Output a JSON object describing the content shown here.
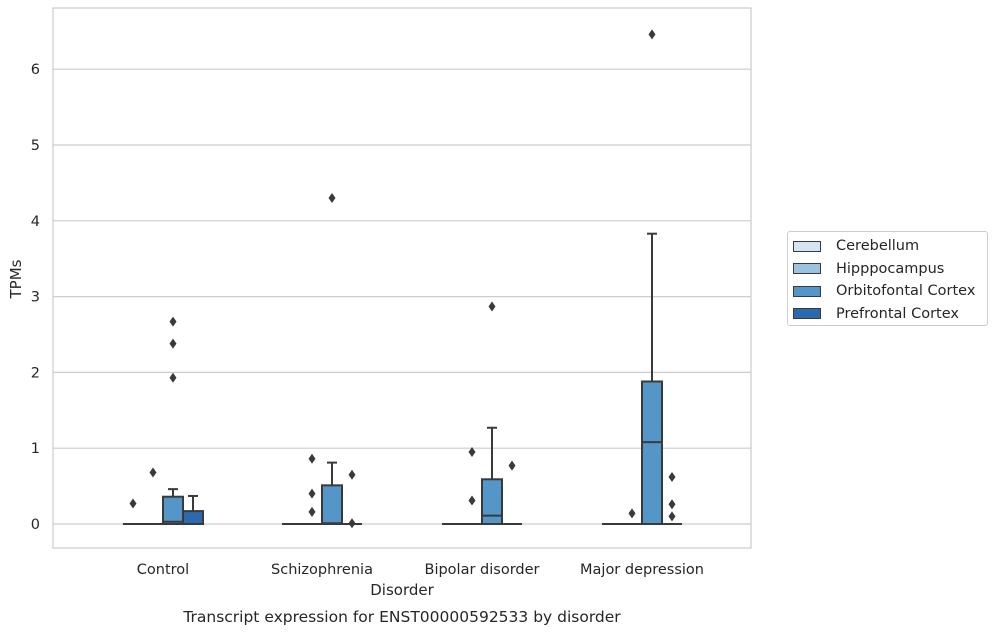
{
  "chart_data": {
    "type": "box",
    "title": "Transcript expression for ENST00000592533 by disorder",
    "xlabel": "Disorder",
    "ylabel": "TPMs",
    "ylim": [
      -0.32,
      6.8
    ],
    "yticks": [
      0,
      1,
      2,
      3,
      4,
      5,
      6
    ],
    "grid": "horizontal",
    "legend_position": "right",
    "categories": [
      "Control",
      "Schizophrenia",
      "Bipolar disorder",
      "Major depression"
    ],
    "series": [
      {
        "name": "Cerebellum",
        "color": "#d3e4f3",
        "boxes": [
          {
            "q1": 0,
            "median": 0,
            "q3": 0,
            "whisker_low": 0,
            "whisker_high": 0,
            "outliers": [
              0.27
            ]
          },
          {
            "q1": 0,
            "median": 0,
            "q3": 0,
            "whisker_low": 0,
            "whisker_high": 0,
            "outliers": []
          },
          {
            "q1": 0,
            "median": 0,
            "q3": 0,
            "whisker_low": 0,
            "whisker_high": 0,
            "outliers": []
          },
          {
            "q1": 0,
            "median": 0,
            "q3": 0,
            "whisker_low": 0,
            "whisker_high": 0,
            "outliers": []
          }
        ]
      },
      {
        "name": "Hipppocampus",
        "color": "#9ac3df",
        "boxes": [
          {
            "q1": 0,
            "median": 0,
            "q3": 0,
            "whisker_low": 0,
            "whisker_high": 0,
            "outliers": [
              0.68
            ]
          },
          {
            "q1": 0,
            "median": 0,
            "q3": 0,
            "whisker_low": 0,
            "whisker_high": 0,
            "outliers": [
              0.16,
              0.4,
              0.86
            ]
          },
          {
            "q1": 0,
            "median": 0,
            "q3": 0,
            "whisker_low": 0,
            "whisker_high": 0,
            "outliers": [
              0.31,
              0.95
            ]
          },
          {
            "q1": 0,
            "median": 0,
            "q3": 0,
            "whisker_low": 0,
            "whisker_high": 0,
            "outliers": [
              0.14
            ]
          }
        ]
      },
      {
        "name": "Orbitofontal Cortex",
        "color": "#5496c7",
        "boxes": [
          {
            "q1": 0,
            "median": 0.03,
            "q3": 0.36,
            "whisker_low": 0,
            "whisker_high": 0.46,
            "outliers": [
              1.93,
              2.38,
              2.67
            ]
          },
          {
            "q1": 0,
            "median": 0.01,
            "q3": 0.51,
            "whisker_low": 0,
            "whisker_high": 0.81,
            "outliers": [
              4.3
            ]
          },
          {
            "q1": 0,
            "median": 0.11,
            "q3": 0.59,
            "whisker_low": 0,
            "whisker_high": 1.27,
            "outliers": [
              2.87
            ]
          },
          {
            "q1": 0,
            "median": 1.08,
            "q3": 1.88,
            "whisker_low": 0,
            "whisker_high": 3.83,
            "outliers": [
              6.46
            ]
          }
        ]
      },
      {
        "name": "Prefrontal Cortex",
        "color": "#2a6aad",
        "boxes": [
          {
            "q1": 0,
            "median": 0,
            "q3": 0.17,
            "whisker_low": 0,
            "whisker_high": 0.37,
            "outliers": []
          },
          {
            "q1": 0,
            "median": 0,
            "q3": 0,
            "whisker_low": 0,
            "whisker_high": 0,
            "outliers": [
              0.01,
              0.65
            ]
          },
          {
            "q1": 0,
            "median": 0,
            "q3": 0,
            "whisker_low": 0,
            "whisker_high": 0,
            "outliers": [
              0.77
            ]
          },
          {
            "q1": 0,
            "median": 0,
            "q3": 0,
            "whisker_low": 0,
            "whisker_high": 0,
            "outliers": [
              0.1,
              0.26,
              0.62
            ]
          }
        ]
      }
    ]
  }
}
